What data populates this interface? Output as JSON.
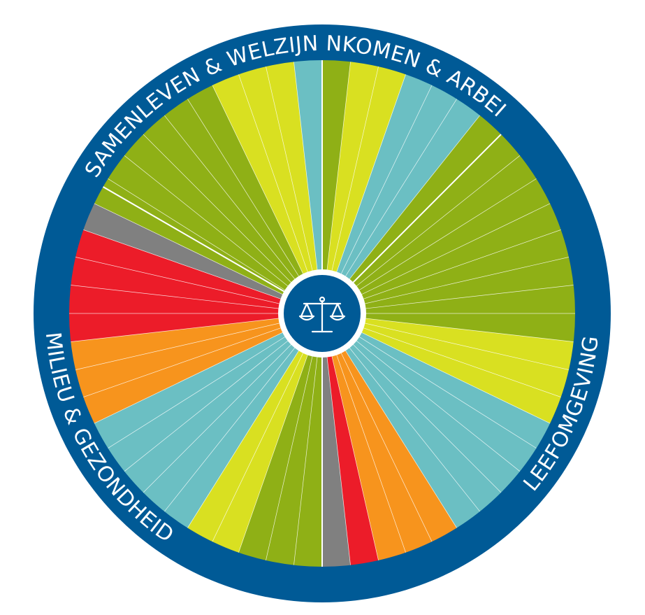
{
  "colors": {
    "blue": "#005a96",
    "darkgreen": "#8fb016",
    "yellow": "#d9e021",
    "teal": "#6bbfc3",
    "red": "#ec1c29",
    "orange": "#f7941d",
    "gray": "#808080",
    "white": "#ffffff"
  },
  "sections": [
    {
      "label": "INKOMEN & ARBEID",
      "text_side": "top"
    },
    {
      "label": "LEEFOMGEVING",
      "text_side": "bottom"
    },
    {
      "label": "MILIEU & GEZONDHEID",
      "text_side": "bottom"
    },
    {
      "label": "SAMENLEVEN & WELZIJN",
      "text_side": "top"
    }
  ],
  "segments": [
    "darkgreen",
    "yellow",
    "yellow",
    "teal",
    "teal",
    "teal",
    "darkgreen",
    "darkgreen",
    "darkgreen",
    "darkgreen",
    "darkgreen",
    "darkgreen",
    "darkgreen",
    "darkgreen",
    "darkgreen",
    "yellow",
    "yellow",
    "yellow",
    "teal",
    "teal",
    "teal",
    "teal",
    "teal",
    "orange",
    "orange",
    "orange",
    "red",
    "gray",
    "darkgreen",
    "darkgreen",
    "darkgreen",
    "yellow",
    "yellow",
    "teal",
    "teal",
    "teal",
    "teal",
    "teal",
    "orange",
    "orange",
    "orange",
    "red",
    "red",
    "red",
    "red",
    "gray",
    "darkgreen",
    "darkgreen",
    "darkgreen",
    "darkgreen",
    "darkgreen",
    "darkgreen",
    "yellow",
    "yellow",
    "yellow",
    "teal"
  ],
  "center_icon": "balance-scale-icon"
}
